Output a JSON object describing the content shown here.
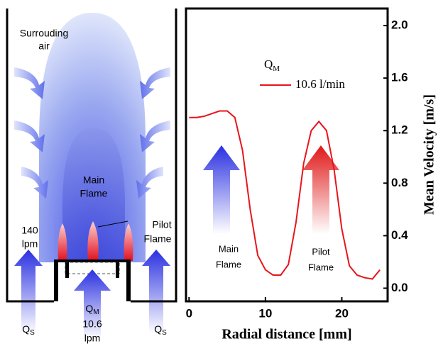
{
  "diagram": {
    "surrounding_air": [
      "Surrouding",
      "air"
    ],
    "main_flame": [
      "Main",
      "Flame"
    ],
    "pilot_flame": [
      "Pilot",
      "Flame"
    ],
    "side_flow": [
      "140",
      "lpm"
    ],
    "side_label": {
      "main": "Q",
      "sub": "S"
    },
    "center_label": {
      "main": "Q",
      "sub": "M",
      "lines": [
        "10.6",
        "lpm"
      ]
    }
  },
  "chart_data": {
    "type": "line",
    "xlabel": "Radial distance [mm]",
    "ylabel": "Mean Velocity [m/s]",
    "legend_title": {
      "main": "Q",
      "sub": "M"
    },
    "x": [
      0,
      1,
      2,
      3,
      4,
      5,
      6,
      7,
      8,
      9,
      10,
      11,
      12,
      13,
      14,
      15,
      16,
      17,
      18,
      19,
      20,
      21,
      22,
      23,
      24,
      25
    ],
    "series": [
      {
        "name": "10.6 l/min",
        "color": "#e8141c",
        "values": [
          1.3,
          1.3,
          1.31,
          1.33,
          1.35,
          1.35,
          1.3,
          1.05,
          0.6,
          0.25,
          0.14,
          0.1,
          0.1,
          0.18,
          0.5,
          0.95,
          1.2,
          1.27,
          1.2,
          0.9,
          0.45,
          0.17,
          0.1,
          0.08,
          0.07,
          0.14
        ]
      }
    ],
    "xlim": [
      -0.4,
      26
    ],
    "ylim": [
      -0.1,
      2.13
    ],
    "xticks": [
      0,
      10,
      20
    ],
    "yticks": [
      {
        "value": 0,
        "label": "0.0"
      },
      0.4,
      0.8,
      1.2,
      1.6,
      {
        "value": 2,
        "label": "2.0"
      }
    ],
    "annotations": [
      {
        "lines": [
          "Main",
          "Flame"
        ],
        "color": "#2233ee"
      },
      {
        "lines": [
          "Pilot",
          "Flame"
        ],
        "color": "#ee2222"
      }
    ]
  }
}
